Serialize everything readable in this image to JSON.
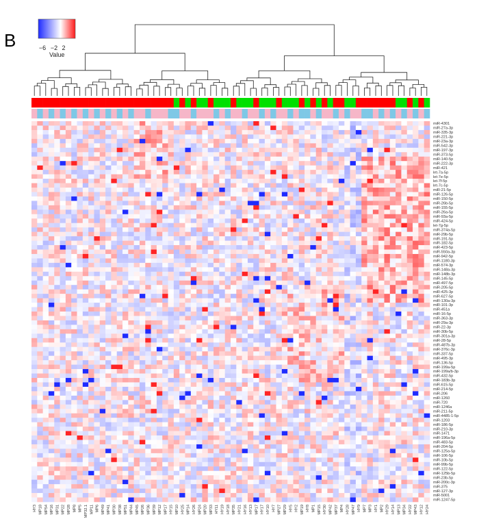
{
  "chart_data": {
    "type": "heatmap",
    "panel_label": "B",
    "color_key": {
      "title": "Value",
      "ticks": [
        "−6",
        "−2",
        "2"
      ],
      "range": [
        -6,
        4
      ],
      "colors": {
        "low": "#1f2cff",
        "mid": "#ffffff",
        "high": "#ff1a1a"
      }
    },
    "annotation_colors": {
      "group": {
        "red": "#ff0000",
        "green": "#00e000"
      },
      "type": {
        "pink": "#f6b6c8",
        "blue": "#7ec8e6"
      }
    },
    "columns": [
      "HY3",
      "MP18",
      "MP54",
      "MP16",
      "MP31",
      "MP22",
      "MP28",
      "MP8",
      "MP5",
      "MP32.1",
      "MP11",
      "MP6",
      "MP49",
      "MP41",
      "MP30",
      "MP38",
      "MP51",
      "MP44",
      "MP45",
      "MP26",
      "MP36",
      "MP39",
      "MP12",
      "MP17",
      "HY15",
      "MP10",
      "HY25",
      "MP14",
      "HY26",
      "MP24",
      "MP20",
      "MP33",
      "HY11",
      "HY19",
      "HY18",
      "MP35",
      "HY21",
      "HY16",
      "HY13",
      "MP17",
      "HY17",
      "HY10",
      "HY7",
      "MP27",
      "MP29",
      "HY5",
      "HY2",
      "MP19",
      "HY8",
      "MP1",
      "MP15",
      "HY30",
      "MP42",
      "MP37",
      "MP4",
      "HY28",
      "MP47",
      "HY9",
      "MP7",
      "MP3",
      "HY1",
      "MP2",
      "HY29",
      "HY14",
      "MP13",
      "MP34",
      "HY22",
      "MP43",
      "HY12",
      "HY24"
    ],
    "column_group": [
      "r",
      "r",
      "r",
      "r",
      "r",
      "r",
      "r",
      "r",
      "r",
      "r",
      "r",
      "r",
      "r",
      "r",
      "r",
      "r",
      "r",
      "r",
      "r",
      "r",
      "r",
      "r",
      "r",
      "r",
      "r",
      "g",
      "r",
      "g",
      "r",
      "g",
      "g",
      "r",
      "g",
      "g",
      "g",
      "r",
      "g",
      "g",
      "g",
      "r",
      "g",
      "g",
      "g",
      "r",
      "g",
      "g",
      "g",
      "r",
      "g",
      "r",
      "g",
      "r",
      "g",
      "r",
      "r",
      "g",
      "g",
      "r",
      "r",
      "r",
      "r",
      "r",
      "r",
      "r",
      "g",
      "g",
      "r",
      "g",
      "r",
      "g"
    ],
    "column_type": [
      "p",
      "b",
      "p",
      "b",
      "p",
      "b",
      "p",
      "b",
      "p",
      "b",
      "p",
      "b",
      "p",
      "b",
      "p",
      "b",
      "p",
      "b",
      "p",
      "p",
      "b",
      "p",
      "p",
      "p",
      "b",
      "b",
      "p",
      "p",
      "b",
      "p",
      "p",
      "p",
      "b",
      "p",
      "b",
      "p",
      "p",
      "b",
      "p",
      "p",
      "b",
      "p",
      "b",
      "p",
      "p",
      "b",
      "p",
      "b",
      "b",
      "p",
      "b",
      "p",
      "p",
      "b",
      "p",
      "b",
      "p",
      "p",
      "b",
      "b",
      "p",
      "b",
      "p",
      "b",
      "p",
      "b",
      "p",
      "b",
      "p",
      "b"
    ],
    "rows": [
      "miR-4301",
      "miR-27a-3p",
      "miR-335-3p",
      "miR-221-3p",
      "miR-23a-3p",
      "miR-542-3p",
      "miR-197-3p",
      "miR-373-5p",
      "miR-140-5p",
      "miR-222-3p",
      "miR-421",
      "let-7a-5p",
      "let-7e-5p",
      "let-7f-5p",
      "let-7c-5p",
      "miR-21-5p",
      "miR-126-5p",
      "miR-150-5p",
      "miR-26b-5p",
      "miR-155-5p",
      "miR-26a-5p",
      "miR-93a-5p",
      "miR-424-5p",
      "let-7g-5p",
      "miR-374a-5p",
      "miR-29b-5p",
      "miR-191-5p",
      "miR-182-5p",
      "miR-423-5p",
      "miR-550a-3p",
      "miR-942-5p",
      "miR-1180-3p",
      "miR-574-3p",
      "miR-148a-3p",
      "miR-148b-3p",
      "miR-145-5p",
      "miR-497-5p",
      "miR-205-5p",
      "miR-425-3p",
      "miR-627-5p",
      "miR-130a-3p",
      "miR-101-3p",
      "miR-451a",
      "miR-16-5p",
      "miR-363-3p",
      "miR-29a-3p",
      "miR-22-3p",
      "miR-30b-5p",
      "miR-301a-3p",
      "miR-28-5p",
      "miR-487b-3p",
      "miR-376c-3p",
      "miR-337-5p",
      "miR-495-3p",
      "miR-136-5p",
      "miR-199a-5p",
      "miR-199a/b-3p",
      "miR-432-5p",
      "miR-183b-3p",
      "miR-615-5p",
      "miR-214-5p",
      "miR-206",
      "miR-1260",
      "miR-720",
      "miR-1246a",
      "miR-211-5p",
      "miR-4485-1-5p",
      "miR-1203",
      "miR-186-5p",
      "miR-210-3p",
      "miR-1471",
      "miR-196a-5p",
      "miR-483-5p",
      "miR-204-5p",
      "miR-125a-5p",
      "miR-106-5p",
      "miR-10b-5p",
      "miR-99b-5p",
      "miR-122-5p",
      "miR-125b-5p",
      "miR-23b-5p",
      "miR-200c-3p",
      "miR-375",
      "miR-127-3p",
      "miR-5001",
      "miR-1247-5p"
    ],
    "values_note": "cell values (range −6 to 4) are shown by cell colour"
  }
}
